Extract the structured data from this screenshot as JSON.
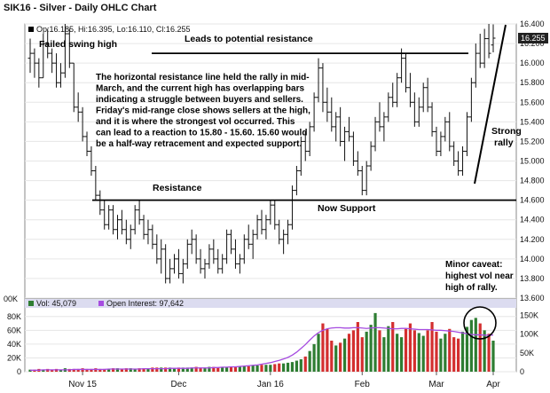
{
  "chart_data": {
    "type": "ohlc",
    "title": "SIK16 - Silver - Daily OHLC Chart",
    "ohlc_legend": "Op:16.185, Hi:16.395, Lo:16.110, Cl:16.255",
    "last_price": "16.255",
    "price_ticks": [
      "13.600",
      "13.800",
      "14.000",
      "14.200",
      "14.400",
      "14.600",
      "14.800",
      "15.000",
      "15.200",
      "15.400",
      "15.600",
      "15.800",
      "16.000",
      "16.200",
      "16.400"
    ],
    "price_ylim": [
      13.6,
      16.4
    ],
    "volume_axis_label": "00K",
    "volume_ticks_left": [
      "0",
      "20K",
      "40K",
      "60K",
      "80K"
    ],
    "volume_ticks_right": [
      "0",
      "50K",
      "100K",
      "150K"
    ],
    "x_labels": [
      "Nov 15",
      "Dec",
      "Jan 16",
      "Feb",
      "Mar",
      "Apr"
    ],
    "vol_legend": "Vol: 45,079",
    "oi_legend": "Open Interest: 97,642",
    "resistance_level": 14.6,
    "upper_resistance_level": 16.1,
    "ohlc": [
      [
        16.05,
        16.25,
        15.9,
        16.1
      ],
      [
        16.1,
        16.15,
        15.85,
        16.0
      ],
      [
        16.0,
        16.05,
        15.75,
        15.85
      ],
      [
        15.85,
        16.3,
        15.85,
        16.2
      ],
      [
        16.2,
        16.35,
        16.05,
        16.1
      ],
      [
        16.1,
        16.15,
        15.9,
        16.0
      ],
      [
        16.0,
        16.1,
        15.75,
        15.8
      ],
      [
        15.8,
        16.0,
        15.75,
        15.9
      ],
      [
        15.9,
        16.4,
        15.85,
        16.3
      ],
      [
        16.3,
        16.35,
        15.95,
        16.0
      ],
      [
        16.0,
        16.0,
        15.5,
        15.55
      ],
      [
        15.55,
        15.7,
        15.4,
        15.5
      ],
      [
        15.5,
        15.55,
        15.2,
        15.25
      ],
      [
        15.25,
        15.3,
        15.05,
        15.1
      ],
      [
        15.1,
        15.15,
        14.85,
        14.9
      ],
      [
        14.9,
        14.95,
        14.6,
        14.65
      ],
      [
        14.65,
        14.7,
        14.45,
        14.5
      ],
      [
        14.5,
        14.6,
        14.3,
        14.35
      ],
      [
        14.35,
        14.55,
        14.3,
        14.5
      ],
      [
        14.5,
        14.55,
        14.25,
        14.3
      ],
      [
        14.3,
        14.45,
        14.2,
        14.4
      ],
      [
        14.4,
        14.5,
        14.25,
        14.3
      ],
      [
        14.3,
        14.4,
        14.15,
        14.2
      ],
      [
        14.2,
        14.35,
        14.1,
        14.3
      ],
      [
        14.3,
        14.55,
        14.25,
        14.5
      ],
      [
        14.5,
        14.6,
        14.35,
        14.4
      ],
      [
        14.4,
        14.45,
        14.2,
        14.25
      ],
      [
        14.25,
        14.4,
        14.15,
        14.3
      ],
      [
        14.3,
        14.35,
        14.1,
        14.15
      ],
      [
        14.15,
        14.25,
        13.95,
        14.0
      ],
      [
        14.0,
        14.2,
        13.85,
        14.1
      ],
      [
        14.1,
        14.15,
        13.75,
        13.8
      ],
      [
        13.8,
        14.0,
        13.75,
        13.9
      ],
      [
        13.9,
        14.05,
        13.85,
        14.0
      ],
      [
        14.0,
        14.1,
        13.8,
        13.85
      ],
      [
        13.85,
        14.0,
        13.75,
        13.95
      ],
      [
        13.95,
        14.2,
        13.9,
        14.15
      ],
      [
        14.15,
        14.3,
        14.05,
        14.2
      ],
      [
        14.2,
        14.25,
        13.95,
        14.0
      ],
      [
        14.0,
        14.1,
        13.85,
        13.9
      ],
      [
        13.9,
        14.0,
        13.8,
        13.95
      ],
      [
        13.95,
        14.15,
        13.9,
        14.1
      ],
      [
        14.1,
        14.2,
        13.95,
        14.0
      ],
      [
        14.0,
        14.1,
        13.85,
        13.9
      ],
      [
        13.9,
        14.05,
        13.85,
        14.0
      ],
      [
        14.0,
        14.3,
        13.95,
        14.25
      ],
      [
        14.25,
        14.3,
        14.05,
        14.1
      ],
      [
        14.1,
        14.2,
        13.9,
        13.95
      ],
      [
        13.95,
        14.05,
        13.85,
        14.0
      ],
      [
        14.0,
        14.25,
        13.95,
        14.2
      ],
      [
        14.2,
        14.35,
        14.1,
        14.15
      ],
      [
        14.15,
        14.3,
        14.0,
        14.25
      ],
      [
        14.25,
        14.45,
        14.2,
        14.4
      ],
      [
        14.4,
        14.5,
        14.25,
        14.3
      ],
      [
        14.3,
        14.45,
        14.2,
        14.4
      ],
      [
        14.4,
        14.6,
        14.35,
        14.55
      ],
      [
        14.55,
        14.6,
        14.3,
        14.35
      ],
      [
        14.35,
        14.4,
        14.15,
        14.2
      ],
      [
        14.2,
        14.3,
        14.05,
        14.25
      ],
      [
        14.25,
        14.4,
        14.15,
        14.35
      ],
      [
        14.35,
        14.75,
        14.3,
        14.7
      ],
      [
        14.7,
        14.95,
        14.65,
        14.9
      ],
      [
        14.9,
        15.25,
        14.85,
        15.2
      ],
      [
        15.2,
        15.3,
        15.0,
        15.1
      ],
      [
        15.1,
        15.4,
        15.05,
        15.35
      ],
      [
        15.35,
        15.7,
        15.3,
        15.65
      ],
      [
        15.65,
        16.05,
        15.6,
        15.95
      ],
      [
        15.95,
        16.0,
        15.5,
        15.6
      ],
      [
        15.6,
        15.75,
        15.4,
        15.5
      ],
      [
        15.5,
        15.65,
        15.3,
        15.35
      ],
      [
        15.35,
        15.5,
        15.2,
        15.45
      ],
      [
        15.45,
        15.55,
        15.15,
        15.2
      ],
      [
        15.2,
        15.35,
        15.0,
        15.3
      ],
      [
        15.3,
        15.45,
        15.2,
        15.25
      ],
      [
        15.25,
        15.3,
        14.95,
        15.0
      ],
      [
        15.0,
        15.1,
        14.85,
        14.9
      ],
      [
        14.9,
        14.95,
        14.65,
        14.7
      ],
      [
        14.7,
        15.0,
        14.65,
        14.95
      ],
      [
        14.95,
        15.2,
        14.9,
        15.15
      ],
      [
        15.15,
        15.45,
        15.1,
        15.4
      ],
      [
        15.4,
        15.6,
        15.3,
        15.35
      ],
      [
        15.35,
        15.5,
        15.2,
        15.45
      ],
      [
        15.45,
        15.7,
        15.4,
        15.65
      ],
      [
        15.65,
        15.8,
        15.55,
        15.6
      ],
      [
        15.6,
        15.9,
        15.55,
        15.85
      ],
      [
        15.85,
        16.15,
        15.8,
        16.05
      ],
      [
        16.05,
        16.1,
        15.7,
        15.75
      ],
      [
        15.75,
        15.9,
        15.55,
        15.6
      ],
      [
        15.6,
        15.7,
        15.35,
        15.4
      ],
      [
        15.4,
        15.65,
        15.35,
        15.55
      ],
      [
        15.55,
        15.8,
        15.5,
        15.75
      ],
      [
        15.75,
        15.85,
        15.5,
        15.55
      ],
      [
        15.55,
        15.6,
        15.25,
        15.3
      ],
      [
        15.3,
        15.35,
        15.05,
        15.1
      ],
      [
        15.1,
        15.3,
        15.05,
        15.25
      ],
      [
        15.25,
        15.45,
        15.2,
        15.4
      ],
      [
        15.4,
        15.5,
        15.1,
        15.15
      ],
      [
        15.15,
        15.2,
        14.95,
        15.0
      ],
      [
        15.0,
        15.1,
        14.85,
        14.9
      ],
      [
        14.9,
        15.15,
        14.85,
        15.1
      ],
      [
        15.1,
        15.5,
        15.05,
        15.45
      ],
      [
        15.45,
        15.85,
        15.4,
        15.8
      ],
      [
        15.8,
        16.2,
        15.75,
        16.1
      ],
      [
        16.1,
        16.3,
        15.95,
        16.0
      ],
      [
        16.0,
        16.35,
        15.95,
        16.25
      ],
      [
        16.25,
        16.4,
        16.05,
        16.1
      ],
      [
        16.185,
        16.395,
        16.11,
        16.255
      ]
    ],
    "volume": [
      3,
      3,
      4,
      3,
      4,
      3,
      4,
      3,
      5,
      4,
      4,
      4,
      5,
      4,
      4,
      5,
      4,
      4,
      4,
      5,
      5,
      4,
      5,
      5,
      4,
      5,
      5,
      5,
      6,
      6,
      6,
      6,
      6,
      5,
      6,
      6,
      6,
      6,
      7,
      6,
      6,
      7,
      7,
      6,
      6,
      7,
      7,
      7,
      8,
      8,
      8,
      9,
      9,
      10,
      10,
      10,
      11,
      12,
      12,
      13,
      14,
      16,
      18,
      22,
      30,
      40,
      55,
      70,
      62,
      45,
      38,
      42,
      48,
      55,
      60,
      72,
      50,
      58,
      68,
      85,
      60,
      50,
      66,
      72,
      55,
      50,
      62,
      70,
      60,
      56,
      52,
      60,
      72,
      58,
      48,
      55,
      62,
      50,
      48,
      58,
      65,
      75,
      78,
      70,
      60,
      55,
      45
    ],
    "open_interest": [
      4,
      4,
      4,
      5,
      5,
      5,
      5,
      5,
      5,
      5,
      6,
      6,
      6,
      6,
      6,
      6,
      6,
      6,
      7,
      7,
      7,
      7,
      7,
      7,
      7,
      7,
      8,
      8,
      8,
      8,
      8,
      8,
      9,
      9,
      9,
      9,
      9,
      10,
      10,
      10,
      10,
      10,
      11,
      11,
      12,
      12,
      13,
      13,
      14,
      15,
      16,
      17,
      18,
      20,
      22,
      24,
      27,
      30,
      34,
      38,
      44,
      52,
      62,
      72,
      84,
      95,
      104,
      110,
      114,
      116,
      117,
      117,
      116,
      116,
      117,
      117,
      116,
      115,
      116,
      117,
      117,
      116,
      115,
      114,
      114,
      115,
      115,
      114,
      113,
      112,
      112,
      112,
      111,
      110,
      110,
      109,
      108,
      107,
      105,
      103,
      101,
      99,
      98,
      98,
      97,
      97,
      97.6
    ],
    "annotations": {
      "failed_swing_high": "Failed swing high",
      "leads_resistance": "Leads to potential resistance",
      "paragraph": [
        "The horizontal resistance line held the rally in mid-",
        "March, and the current high has overlapping bars",
        "indicating a struggle between buyers and sellers.",
        "Friday's mid-range close shows sellers at the high,",
        "and it is where the strongest vol occurred.  This",
        "can lead to a reaction to 15.80 - 15.60.  15.60 would",
        "be a half-way retracement and expected support."
      ],
      "resistance": "Resistance",
      "now_support": "Now Support",
      "strong_rally": [
        "Strong",
        "rally"
      ],
      "caveat": [
        "Minor caveat:",
        "highest vol near",
        "high of rally."
      ]
    },
    "colors": {
      "up_bar": "#2e7d32",
      "down_bar": "#d32f2f",
      "oi_line": "#a64ce0",
      "panel_header": "#dcdcf0",
      "price_badge": "#222222"
    }
  }
}
